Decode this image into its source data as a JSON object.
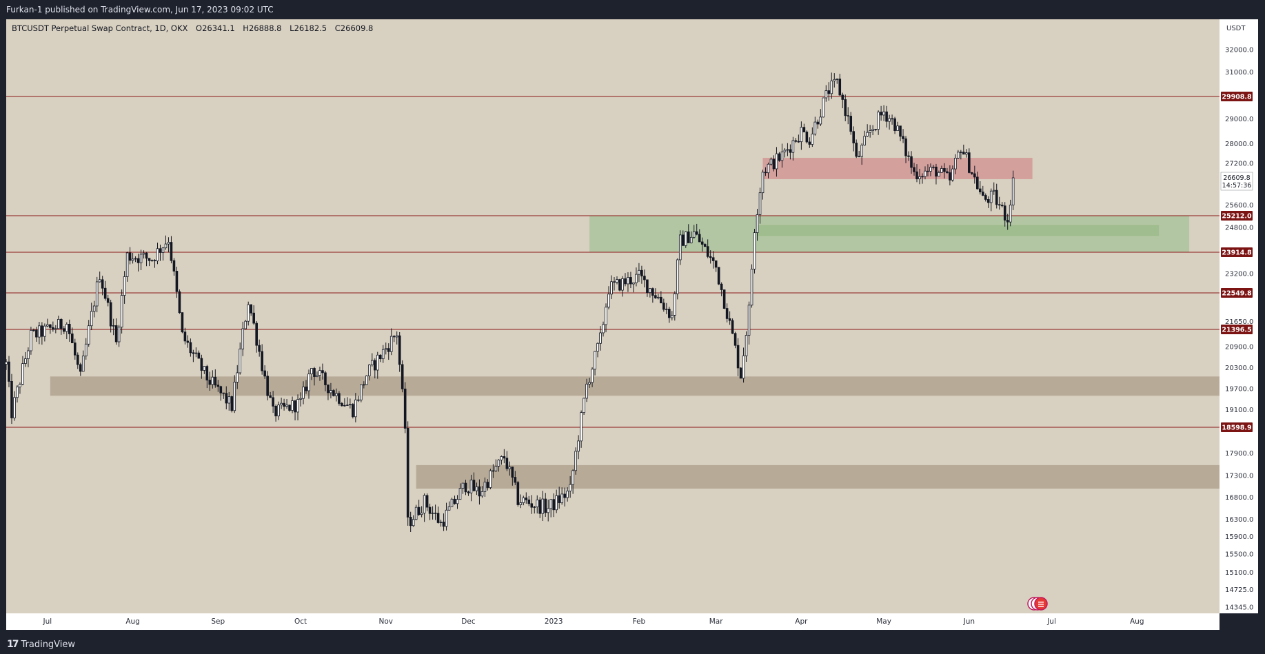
{
  "header": {
    "title": "Furkan-1 published on TradingView.com, Jun 17, 2023 09:02 UTC"
  },
  "footer": {
    "logo": "17",
    "brand": "TradingView"
  },
  "colors": {
    "background": "#d8d0c0",
    "candle": "#131722",
    "level_line": "#8b1a1a",
    "level_label_bg": "#7d1414",
    "red_zone": "#d4a09c",
    "green_zone": "#b3c6a4",
    "green_inner": "#9fbd8e",
    "gray_zone": "#b7aa97"
  },
  "chart_data": {
    "type": "candlestick",
    "title": "",
    "legend": {
      "symbol": "BTCUSDT Perpetual Swap Contract, 1D, OKX",
      "open": "O26341.1",
      "high": "H26888.8",
      "low": "L26182.5",
      "close": "C26609.8"
    },
    "currency": "USDT",
    "y_tick_labels": [
      "32000.0",
      "31000.0",
      "29000.0",
      "28000.0",
      "27200.0",
      "25600.0",
      "24800.0",
      "23200.0",
      "21650.0",
      "20900.0",
      "20300.0",
      "19700.0",
      "19100.0",
      "17900.0",
      "17300.0",
      "16800.0",
      "16300.0",
      "15900.0",
      "15500.0",
      "15100.0",
      "14725.0",
      "14345.0"
    ],
    "x_tick_labels": [
      "Jul",
      "Aug",
      "Sep",
      "Oct",
      "Nov",
      "Dec",
      "2023",
      "Feb",
      "Mar",
      "Apr",
      "May",
      "Jun",
      "Jul",
      "Aug"
    ],
    "x_start": "2022-06-16",
    "x_end": "2023-08-31",
    "horizontal_levels": [
      {
        "price": 29908.8,
        "label": "29908.8"
      },
      {
        "price": 25212.0,
        "label": "25212.0"
      },
      {
        "price": 23914.8,
        "label": "23914.8"
      },
      {
        "price": 22549.8,
        "label": "22549.8"
      },
      {
        "price": 21396.5,
        "label": "21396.5"
      },
      {
        "price": 18598.9,
        "label": "18598.9"
      }
    ],
    "current_price": {
      "value": 26609.8,
      "label": "26609.8",
      "countdown": "14:57:36"
    },
    "zones": [
      {
        "kind": "red",
        "from": "2023-03-18",
        "to": "2023-06-24",
        "low": 26560,
        "high": 27420
      },
      {
        "kind": "green",
        "from": "2023-01-14",
        "to": "2023-08-20",
        "low": 23914.8,
        "high": 25212
      },
      {
        "kind": "green_inner",
        "from": "2023-03-16",
        "to": "2023-08-09",
        "low": 24490,
        "high": 24880
      },
      {
        "kind": "gray",
        "from": "2022-07-02",
        "to": "2023-08-31",
        "low": 19500,
        "high": 20050
      },
      {
        "kind": "gray",
        "from": "2022-11-12",
        "to": "2023-08-31",
        "low": 17000,
        "high": 17580
      }
    ],
    "series": [
      {
        "name": "BTCUSDT",
        "anchor_dates": [
          "2022-06-16",
          "2022-06-18",
          "2022-06-25",
          "2022-07-08",
          "2022-07-13",
          "2022-07-20",
          "2022-07-26",
          "2022-07-30",
          "2022-08-08",
          "2022-08-14",
          "2022-08-19",
          "2022-08-28",
          "2022-09-06",
          "2022-09-12",
          "2022-09-18",
          "2022-09-21",
          "2022-10-01",
          "2022-10-05",
          "2022-10-13",
          "2022-10-20",
          "2022-10-25",
          "2022-11-05",
          "2022-11-08",
          "2022-11-09",
          "2022-11-15",
          "2022-11-21",
          "2022-11-30",
          "2022-12-05",
          "2022-12-14",
          "2022-12-19",
          "2022-12-30",
          "2023-01-07",
          "2023-01-13",
          "2023-01-18",
          "2023-01-21",
          "2023-02-01",
          "2023-02-08",
          "2023-02-13",
          "2023-02-16",
          "2023-02-21",
          "2023-03-01",
          "2023-03-10",
          "2023-03-13",
          "2023-03-15",
          "2023-03-18",
          "2023-03-25",
          "2023-04-01",
          "2023-04-04",
          "2023-04-11",
          "2023-04-14",
          "2023-04-19",
          "2023-04-21",
          "2023-04-26",
          "2023-05-01",
          "2023-05-05",
          "2023-05-12",
          "2023-05-20",
          "2023-05-25",
          "2023-05-29",
          "2023-06-06",
          "2023-06-10",
          "2023-06-15",
          "2023-06-17"
        ],
        "anchor_close": [
          20400,
          19000,
          21200,
          21600,
          20000,
          23200,
          21000,
          23800,
          23700,
          24400,
          21200,
          20000,
          19200,
          22300,
          20000,
          19000,
          19300,
          20300,
          19600,
          19100,
          20100,
          21300,
          18600,
          16200,
          16700,
          16200,
          17100,
          16900,
          17800,
          16750,
          16550,
          16950,
          19800,
          21100,
          22700,
          23100,
          22400,
          21800,
          24300,
          24600,
          23400,
          20100,
          22000,
          24800,
          26900,
          27500,
          28500,
          28200,
          30200,
          30500,
          28600,
          27300,
          28500,
          29300,
          28800,
          26800,
          26900,
          26500,
          27900,
          25800,
          25900,
          25100,
          26609.8
        ]
      }
    ]
  }
}
